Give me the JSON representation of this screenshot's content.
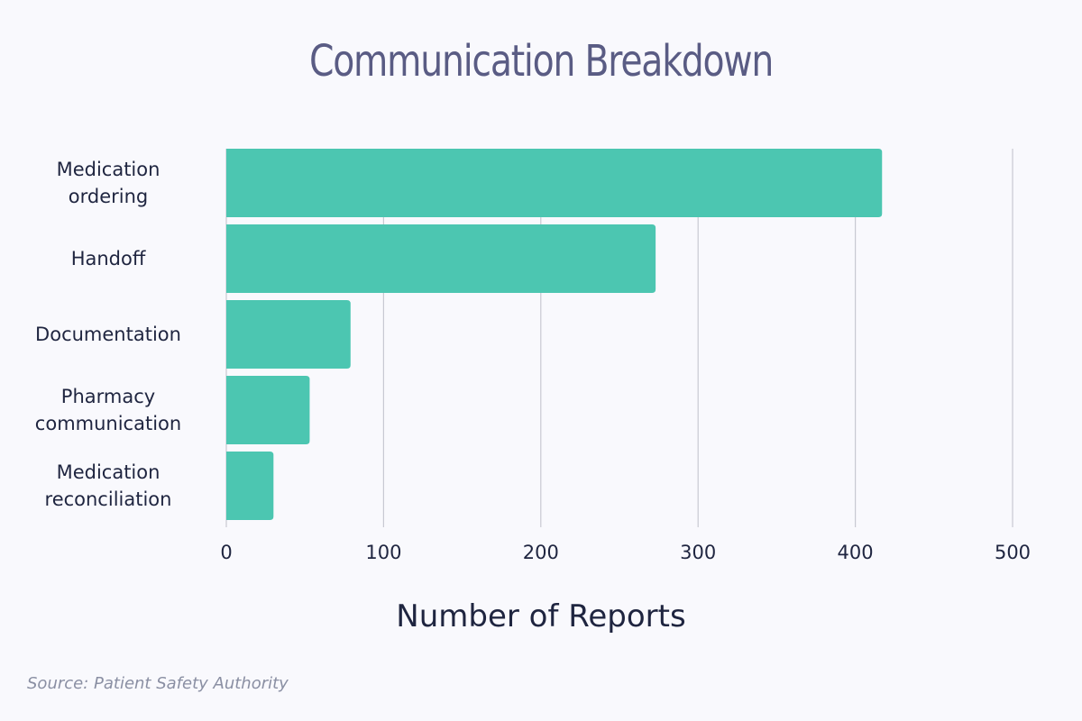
{
  "chart_data": {
    "type": "bar",
    "orientation": "horizontal",
    "title": "Communication Breakdown",
    "xlabel": "Number of Reports",
    "ylabel": "",
    "categories": [
      [
        "Medication",
        "ordering"
      ],
      [
        "Handoff"
      ],
      [
        "Documentation"
      ],
      [
        "Pharmacy",
        "communication"
      ],
      [
        "Medication",
        "reconciliation"
      ]
    ],
    "values": [
      417,
      273,
      79,
      53,
      30
    ],
    "xlim": [
      0,
      500
    ],
    "xticks": [
      "0",
      "100",
      "200",
      "300",
      "400",
      "500"
    ],
    "grid": "vertical",
    "legend": "none",
    "source": "Source: Patient Safety Authority"
  },
  "colors": {
    "bar": "#4cc6b1",
    "grid": "#c8c9d2",
    "title": "#5a5c84",
    "text": "#1f2540",
    "source": "#8a8fa3",
    "background": "#f9f9fd"
  }
}
